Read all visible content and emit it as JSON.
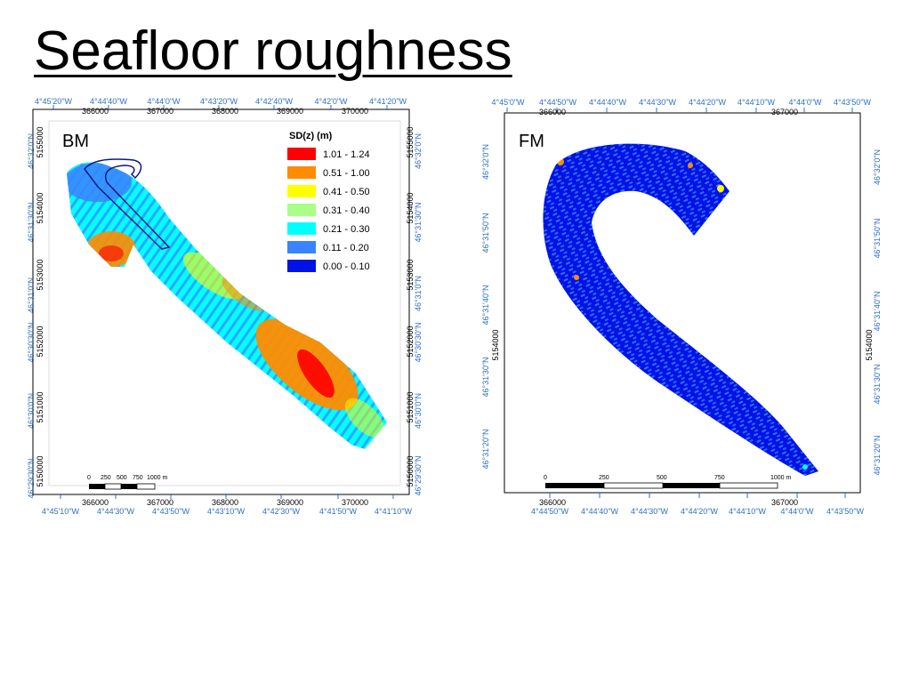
{
  "slide": {
    "title": "Seafloor roughness"
  },
  "colors": {
    "swatch_1": "#ff0000",
    "swatch_2": "#ff8c00",
    "swatch_3": "#ffff00",
    "swatch_4": "#aaff88",
    "swatch_5": "#00ffff",
    "swatch_6": "#3b82ff",
    "swatch_7": "#0012e6",
    "coord_text": "#2f6fc4"
  },
  "map_bm": {
    "label": "BM",
    "top_lon": [
      "4°45'20\"W",
      "4°44'40\"W",
      "4°44'0\"W",
      "4°43'20\"W",
      "4°42'40\"W",
      "4°42'0\"W",
      "4°41'20\"W"
    ],
    "top_easting": [
      "366000",
      "367000",
      "368000",
      "369000",
      "370000"
    ],
    "bottom_easting": [
      "366000",
      "367000",
      "368000",
      "369000",
      "370000"
    ],
    "bottom_lon": [
      "4°45'10\"W",
      "4°44'30\"W",
      "4°43'50\"W",
      "4°43'10\"W",
      "4°42'30\"W",
      "4°41'50\"W",
      "4°41'10\"W"
    ],
    "left_lat": [
      "46°32'0\"N",
      "46°31'30\"N",
      "46°31'0\"N",
      "46°30'30\"N",
      "46°30'0\"N",
      "46°29'30\"N"
    ],
    "left_northing": [
      "5155000",
      "5154000",
      "5153000",
      "5152000",
      "5151000",
      "5150000"
    ],
    "right_northing": [
      "5155000",
      "5154000",
      "5153000",
      "5152000",
      "5151000",
      "5150000"
    ],
    "right_lat": [
      "46°32'0\"N",
      "46°31'30\"N",
      "46°31'0\"N",
      "46°30'30\"N",
      "46°30'0\"N",
      "46°29'30\"N"
    ],
    "scale_labels": [
      "0",
      "250",
      "500",
      "750",
      "1000 m"
    ],
    "legend": {
      "title": "SD(z) (m)",
      "items": [
        "1.01 -  1.24",
        "0.51 -  1.00",
        "0.41 -  0.50",
        "0.31 -  0.40",
        "0.21 -  0.30",
        "0.11 -  0.20",
        "0.00 -  0.10"
      ]
    }
  },
  "map_fm": {
    "label": "FM",
    "top_lon": [
      "4°45'0\"W",
      "4°44'50\"W",
      "4°44'40\"W",
      "4°44'30\"W",
      "4°44'20\"W",
      "4°44'10\"W",
      "4°44'0\"W",
      "4°43'50\"W"
    ],
    "top_easting": [
      "366000",
      "367000"
    ],
    "bottom_easting": [
      "366000",
      "367000"
    ],
    "bottom_lon": [
      "4°44'50\"W",
      "4°44'40\"W",
      "4°44'30\"W",
      "4°44'20\"W",
      "4°44'10\"W",
      "4°44'0\"W",
      "4°43'50\"W"
    ],
    "left_lat": [
      "46°32'0\"N",
      "46°31'50\"N",
      "46°31'40\"N",
      "46°31'30\"N",
      "46°31'20\"N"
    ],
    "left_northing": [
      "5154000"
    ],
    "right_northing": [
      "5154000"
    ],
    "right_lat": [
      "46°32'0\"N",
      "46°31'50\"N",
      "46°31'40\"N",
      "46°31'30\"N",
      "46°31'20\"N"
    ],
    "scale_labels": [
      "0",
      "250",
      "500",
      "750",
      "1000 m"
    ]
  }
}
